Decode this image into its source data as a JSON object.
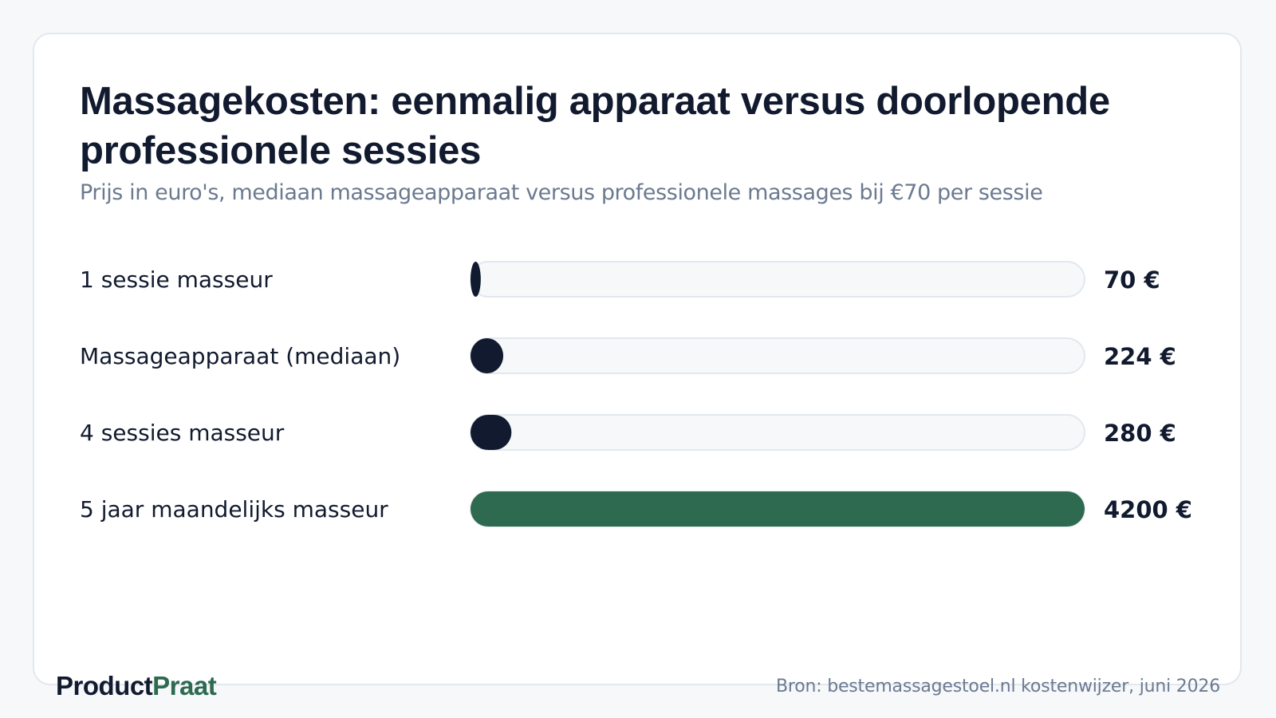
{
  "chart_data": {
    "type": "bar",
    "orientation": "horizontal",
    "title": "Massagekosten: eenmalig apparaat versus doorlopende professionele sessies",
    "subtitle": "Prijs in euro's, mediaan massageapparaat versus professionele massages bij €70 per sessie",
    "categories": [
      "1 sessie masseur",
      "Massageapparaat (mediaan)",
      "4 sessies masseur",
      "5 jaar maandelijks masseur"
    ],
    "values": [
      70,
      224,
      280,
      4200
    ],
    "value_labels": [
      "70 €",
      "224 €",
      "280 €",
      "4200 €"
    ],
    "xlim": [
      0,
      4200
    ],
    "grid": false,
    "colors": [
      "#111a2e",
      "#111a2e",
      "#111a2e",
      "#2d6a4f"
    ],
    "track_color": "#f6f8fa"
  },
  "brand": {
    "part1": "Product",
    "part2": "Praat"
  },
  "source": "Bron: bestemassagestoel.nl kostenwijzer, juni 2026"
}
